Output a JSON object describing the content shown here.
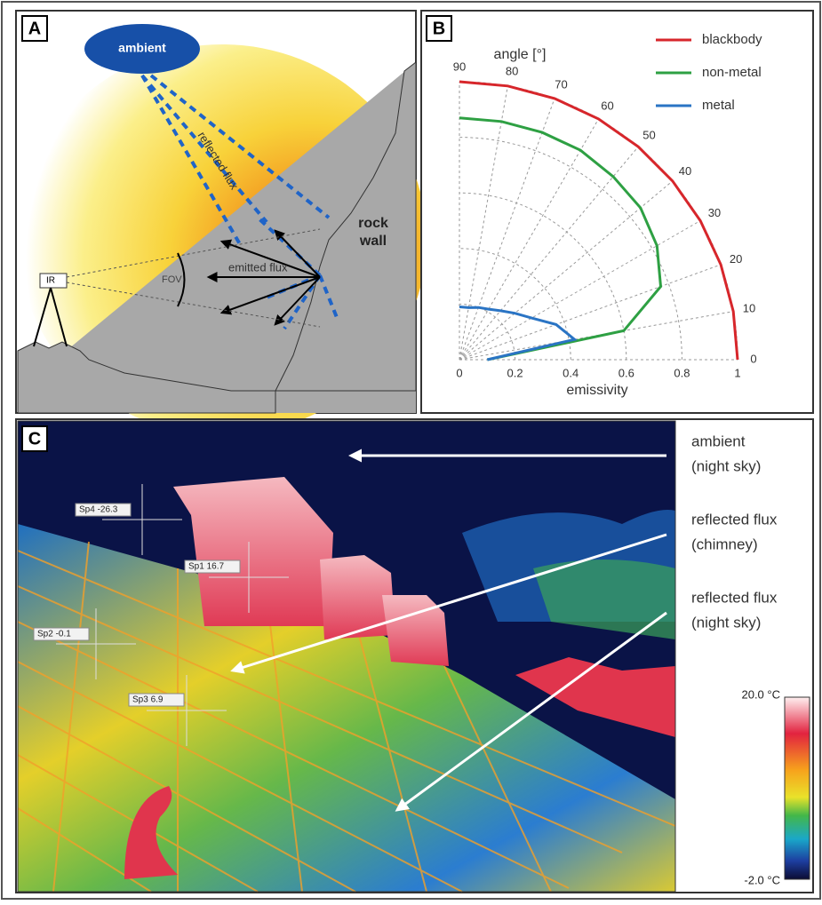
{
  "panel_a": {
    "label": "A",
    "ambient": "ambient",
    "reflected_flux": "reflected flux",
    "emitted_flux": "emitted flux",
    "fov": "FOV",
    "ir": "IR",
    "rock": "rock",
    "wall": "wall"
  },
  "panel_b": {
    "label": "B",
    "chart_data": {
      "type": "polar",
      "angle_label": "angle [°]",
      "x_label": "emissivity",
      "rlim": [
        0,
        1
      ],
      "rticks": [
        0,
        0.2,
        0.4,
        0.6,
        0.8,
        1
      ],
      "angle_ticks": [
        0,
        10,
        20,
        30,
        40,
        50,
        60,
        70,
        80,
        90
      ],
      "angles": [
        0,
        10,
        20,
        30,
        40,
        50,
        60,
        70,
        80,
        90
      ],
      "series": [
        {
          "name": "blackbody",
          "color": "#d7262b",
          "values": [
            1,
            1,
            1,
            1,
            1,
            1,
            1,
            1,
            1,
            1
          ]
        },
        {
          "name": "non-metal",
          "color": "#2ea043",
          "values": [
            0.1,
            0.6,
            0.77,
            0.82,
            0.85,
            0.86,
            0.87,
            0.87,
            0.87,
            0.87
          ]
        },
        {
          "name": "metal",
          "color": "#2a74c4",
          "values": [
            0.1,
            0.42,
            0.37,
            0.3,
            0.26,
            0.23,
            0.21,
            0.2,
            0.19,
            0.19
          ]
        }
      ]
    }
  },
  "panel_c": {
    "label": "C",
    "spots": [
      "Sp4 -26.3",
      "Sp1 16.7",
      "Sp2 -0.1",
      "Sp3 6.9"
    ],
    "annotations": [
      [
        "ambient",
        "(night sky)"
      ],
      [
        "reflected flux",
        "(chimney)"
      ],
      [
        "reflected flux",
        "(night sky)"
      ]
    ],
    "scale_max": "20.0 °C",
    "scale_min": "-2.0 °C"
  }
}
